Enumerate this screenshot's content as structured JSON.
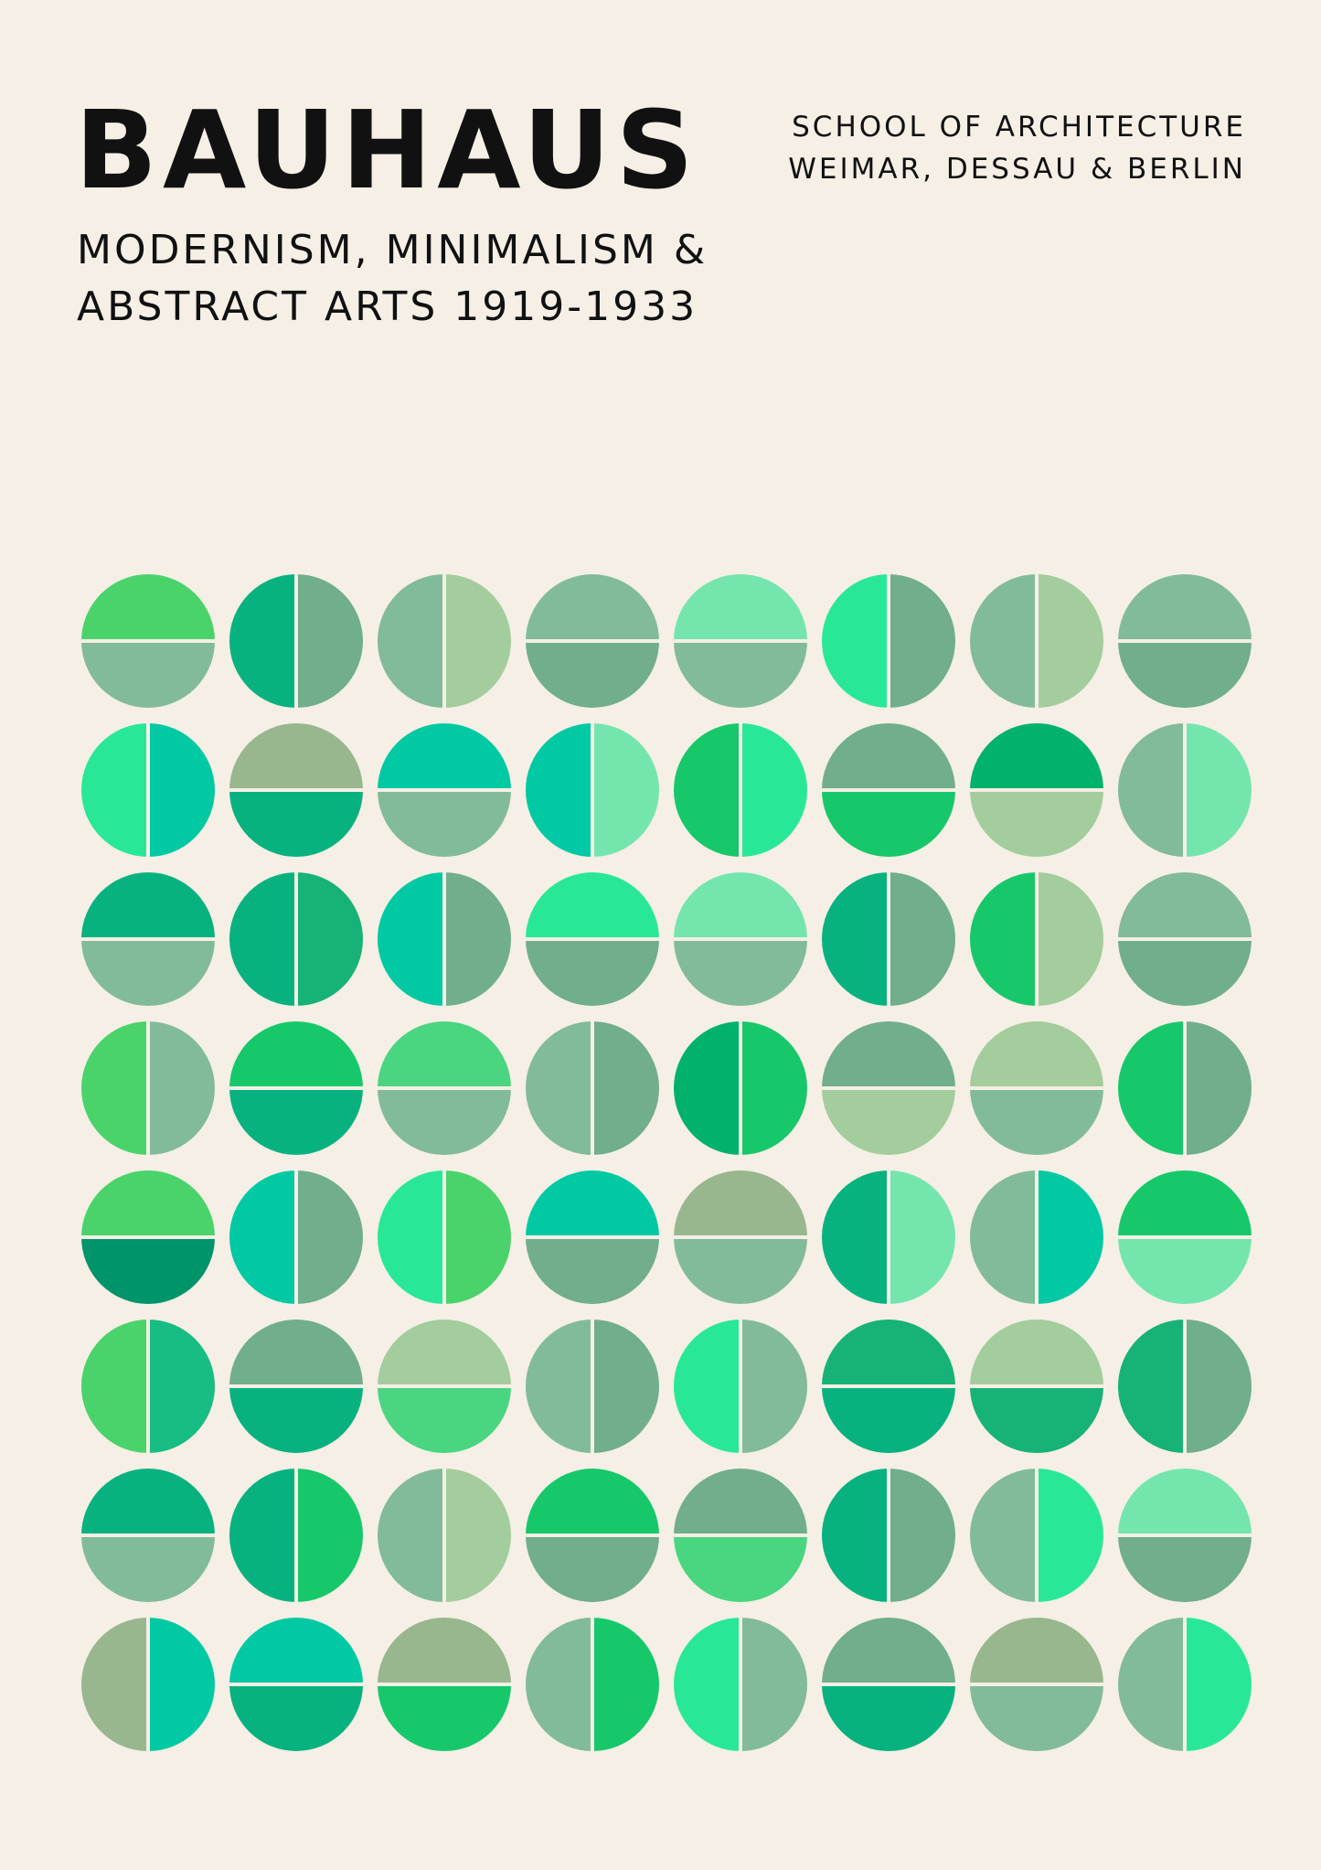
{
  "poster": {
    "title": "BAUHAUS",
    "subtitle_line1": "MODERNISM, MINIMALISM &",
    "subtitle_line2": "ABSTRACT ARTS 1919-1933",
    "school_line1": "SCHOOL OF ARCHITECTURE",
    "school_line2": "WEIMAR, DESSAU & BERLIN"
  },
  "colors": {
    "background": "#f5efe5",
    "text": "#111111",
    "divider": "#f5efe5"
  },
  "circles": [
    [
      {
        "split": "h",
        "a": "#4ad36b",
        "b": "#82bb9a"
      },
      {
        "split": "v",
        "a": "#07b27f",
        "b": "#70ae8c"
      },
      {
        "split": "v",
        "a": "#82bb9a",
        "b": "#a3cd9c"
      },
      {
        "split": "h",
        "a": "#82bb9a",
        "b": "#70ae8c"
      },
      {
        "split": "h",
        "a": "#74e6ad",
        "b": "#82bb9a"
      },
      {
        "split": "v",
        "a": "#28e897",
        "b": "#70ae8c"
      },
      {
        "split": "v",
        "a": "#82bb9a",
        "b": "#a3cd9c"
      },
      {
        "split": "h",
        "a": "#82bb9a",
        "b": "#70ae8c"
      }
    ],
    [
      {
        "split": "v",
        "a": "#28e897",
        "b": "#00c9a3"
      },
      {
        "split": "h",
        "a": "#99b78f",
        "b": "#07b27f"
      },
      {
        "split": "h",
        "a": "#00c9a3",
        "b": "#82bb9a"
      },
      {
        "split": "v",
        "a": "#00c9a3",
        "b": "#74e6ad"
      },
      {
        "split": "v",
        "a": "#17c86b",
        "b": "#28e897"
      },
      {
        "split": "h",
        "a": "#70ae8c",
        "b": "#17c86b"
      },
      {
        "split": "h",
        "a": "#00b26a",
        "b": "#a3cd9c"
      },
      {
        "split": "v",
        "a": "#82bb9a",
        "b": "#74e6ad"
      }
    ],
    [
      {
        "split": "h",
        "a": "#07b27f",
        "b": "#82bb9a"
      },
      {
        "split": "v",
        "a": "#07b27f",
        "b": "#17b276"
      },
      {
        "split": "v",
        "a": "#00c9a3",
        "b": "#70ae8c"
      },
      {
        "split": "h",
        "a": "#28e897",
        "b": "#70ae8c"
      },
      {
        "split": "h",
        "a": "#74e6ad",
        "b": "#82bb9a"
      },
      {
        "split": "v",
        "a": "#07b27f",
        "b": "#70ae8c"
      },
      {
        "split": "v",
        "a": "#17c86b",
        "b": "#a3cd9c"
      },
      {
        "split": "h",
        "a": "#82bb9a",
        "b": "#70ae8c"
      }
    ],
    [
      {
        "split": "v",
        "a": "#4ad36b",
        "b": "#82bb9a"
      },
      {
        "split": "h",
        "a": "#17c86b",
        "b": "#07b27f"
      },
      {
        "split": "h",
        "a": "#4ad580",
        "b": "#82bb9a"
      },
      {
        "split": "v",
        "a": "#82bb9a",
        "b": "#70ae8c"
      },
      {
        "split": "v",
        "a": "#00b26a",
        "b": "#17c86b"
      },
      {
        "split": "h",
        "a": "#70ae8c",
        "b": "#a3cd9c"
      },
      {
        "split": "h",
        "a": "#a3cd9c",
        "b": "#82bb9a"
      },
      {
        "split": "v",
        "a": "#17c86b",
        "b": "#70ae8c"
      }
    ],
    [
      {
        "split": "h",
        "a": "#4ad36b",
        "b": "#00946a"
      },
      {
        "split": "v",
        "a": "#00c9a3",
        "b": "#70ae8c"
      },
      {
        "split": "v",
        "a": "#28e897",
        "b": "#4ad36b"
      },
      {
        "split": "h",
        "a": "#00c9a3",
        "b": "#70ae8c"
      },
      {
        "split": "h",
        "a": "#99b78f",
        "b": "#82bb9a"
      },
      {
        "split": "v",
        "a": "#07b27f",
        "b": "#74e6ad"
      },
      {
        "split": "v",
        "a": "#82bb9a",
        "b": "#00c9a3"
      },
      {
        "split": "h",
        "a": "#17c86b",
        "b": "#74e6ad"
      }
    ],
    [
      {
        "split": "v",
        "a": "#4ad36b",
        "b": "#17bd82"
      },
      {
        "split": "h",
        "a": "#70ae8c",
        "b": "#07b27f"
      },
      {
        "split": "h",
        "a": "#a3cd9c",
        "b": "#4ad580"
      },
      {
        "split": "v",
        "a": "#82bb9a",
        "b": "#70ae8c"
      },
      {
        "split": "v",
        "a": "#28e897",
        "b": "#82bb9a"
      },
      {
        "split": "h",
        "a": "#17b276",
        "b": "#07b27f"
      },
      {
        "split": "h",
        "a": "#a3cd9c",
        "b": "#17b276"
      },
      {
        "split": "v",
        "a": "#17b276",
        "b": "#70ae8c"
      }
    ],
    [
      {
        "split": "h",
        "a": "#07b27f",
        "b": "#82bb9a"
      },
      {
        "split": "v",
        "a": "#07b27f",
        "b": "#17c86b"
      },
      {
        "split": "v",
        "a": "#82bb9a",
        "b": "#a3cd9c"
      },
      {
        "split": "h",
        "a": "#17c86b",
        "b": "#70ae8c"
      },
      {
        "split": "h",
        "a": "#70ae8c",
        "b": "#4ad580"
      },
      {
        "split": "v",
        "a": "#07b27f",
        "b": "#70ae8c"
      },
      {
        "split": "v",
        "a": "#82bb9a",
        "b": "#28e897"
      },
      {
        "split": "h",
        "a": "#74e6ad",
        "b": "#70ae8c"
      }
    ],
    [
      {
        "split": "v",
        "a": "#99b78f",
        "b": "#00c9a3"
      },
      {
        "split": "h",
        "a": "#00c9a3",
        "b": "#07b27f"
      },
      {
        "split": "h",
        "a": "#99b78f",
        "b": "#17c86b"
      },
      {
        "split": "v",
        "a": "#82bb9a",
        "b": "#17c86b"
      },
      {
        "split": "v",
        "a": "#28e897",
        "b": "#82bb9a"
      },
      {
        "split": "h",
        "a": "#70ae8c",
        "b": "#07b27f"
      },
      {
        "split": "h",
        "a": "#99b78f",
        "b": "#82bb9a"
      },
      {
        "split": "v",
        "a": "#82bb9a",
        "b": "#28e897"
      }
    ]
  ]
}
